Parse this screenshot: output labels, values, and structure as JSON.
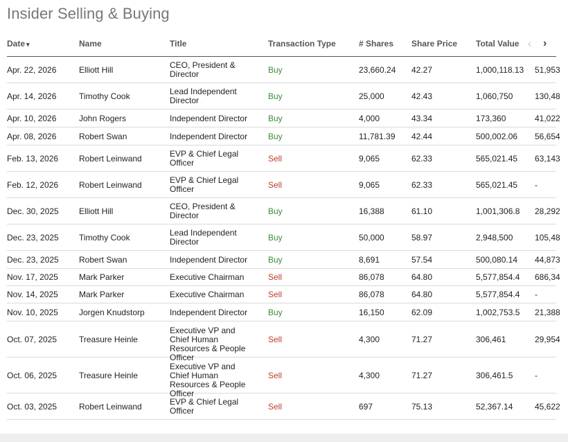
{
  "page": {
    "title": "Insider Selling & Buying"
  },
  "table": {
    "headers": {
      "date": "Date",
      "date_sort": "▾",
      "name": "Name",
      "title": "Title",
      "transaction_type": "Transaction Type",
      "shares": "# Shares",
      "share_price": "Share Price",
      "total_value": "Total Value"
    },
    "nav": {
      "prev": "‹",
      "next": "›"
    },
    "rows": [
      {
        "date": "Apr. 22, 2026",
        "name": "Elliott Hill",
        "title": "CEO, President & Director",
        "type": "Buy",
        "shares": "23,660.24",
        "price": "42.27",
        "total": "1,000,118.13",
        "extra": "51,953"
      },
      {
        "date": "Apr. 14, 2026",
        "name": "Timothy Cook",
        "title": "Lead Independent Director",
        "type": "Buy",
        "shares": "25,000",
        "price": "42.43",
        "total": "1,060,750",
        "extra": "130,48"
      },
      {
        "date": "Apr. 10, 2026",
        "name": "John Rogers",
        "title": "Independent Director",
        "type": "Buy",
        "shares": "4,000",
        "price": "43.34",
        "total": "173,360",
        "extra": "41,022"
      },
      {
        "date": "Apr. 08, 2026",
        "name": "Robert Swan",
        "title": "Independent Director",
        "type": "Buy",
        "shares": "11,781.39",
        "price": "42.44",
        "total": "500,002.06",
        "extra": "56,654"
      },
      {
        "date": "Feb. 13, 2026",
        "name": "Robert Leinwand",
        "title": "EVP & Chief Legal Officer",
        "type": "Sell",
        "shares": "9,065",
        "price": "62.33",
        "total": "565,021.45",
        "extra": "63,143"
      },
      {
        "date": "Feb. 12, 2026",
        "name": "Robert Leinwand",
        "title": "EVP & Chief Legal Officer",
        "type": "Sell",
        "shares": "9,065",
        "price": "62.33",
        "total": "565,021.45",
        "extra": "-"
      },
      {
        "date": "Dec. 30, 2025",
        "name": "Elliott Hill",
        "title": "CEO, President & Director",
        "type": "Buy",
        "shares": "16,388",
        "price": "61.10",
        "total": "1,001,306.8",
        "extra": "28,292"
      },
      {
        "date": "Dec. 23, 2025",
        "name": "Timothy Cook",
        "title": "Lead Independent Director",
        "type": "Buy",
        "shares": "50,000",
        "price": "58.97",
        "total": "2,948,500",
        "extra": "105,48"
      },
      {
        "date": "Dec. 23, 2025",
        "name": "Robert Swan",
        "title": "Independent Director",
        "type": "Buy",
        "shares": "8,691",
        "price": "57.54",
        "total": "500,080.14",
        "extra": "44,873"
      },
      {
        "date": "Nov. 17, 2025",
        "name": "Mark Parker",
        "title": "Executive Chairman",
        "type": "Sell",
        "shares": "86,078",
        "price": "64.80",
        "total": "5,577,854.4",
        "extra": "686,34"
      },
      {
        "date": "Nov. 14, 2025",
        "name": "Mark Parker",
        "title": "Executive Chairman",
        "type": "Sell",
        "shares": "86,078",
        "price": "64.80",
        "total": "5,577,854.4",
        "extra": "-"
      },
      {
        "date": "Nov. 10, 2025",
        "name": "Jorgen Knudstorp",
        "title": "Independent Director",
        "type": "Buy",
        "shares": "16,150",
        "price": "62.09",
        "total": "1,002,753.5",
        "extra": "21,388"
      },
      {
        "date": "Oct. 07, 2025",
        "name": "Treasure Heinle",
        "title": "Executive VP and Chief Human Resources & People Officer",
        "type": "Sell",
        "shares": "4,300",
        "price": "71.27",
        "total": "306,461",
        "extra": "29,954"
      },
      {
        "date": "Oct. 06, 2025",
        "name": "Treasure Heinle",
        "title": "Executive VP and Chief Human Resources & People Officer",
        "type": "Sell",
        "shares": "4,300",
        "price": "71.27",
        "total": "306,461.5",
        "extra": "-"
      },
      {
        "date": "Oct. 03, 2025",
        "name": "Robert Leinwand",
        "title": "EVP & Chief Legal Officer",
        "type": "Sell",
        "shares": "697",
        "price": "75.13",
        "total": "52,367.14",
        "extra": "45,622"
      }
    ]
  },
  "colors": {
    "buy": "#3a8a3a",
    "sell": "#c0392b",
    "title": "#777777"
  }
}
